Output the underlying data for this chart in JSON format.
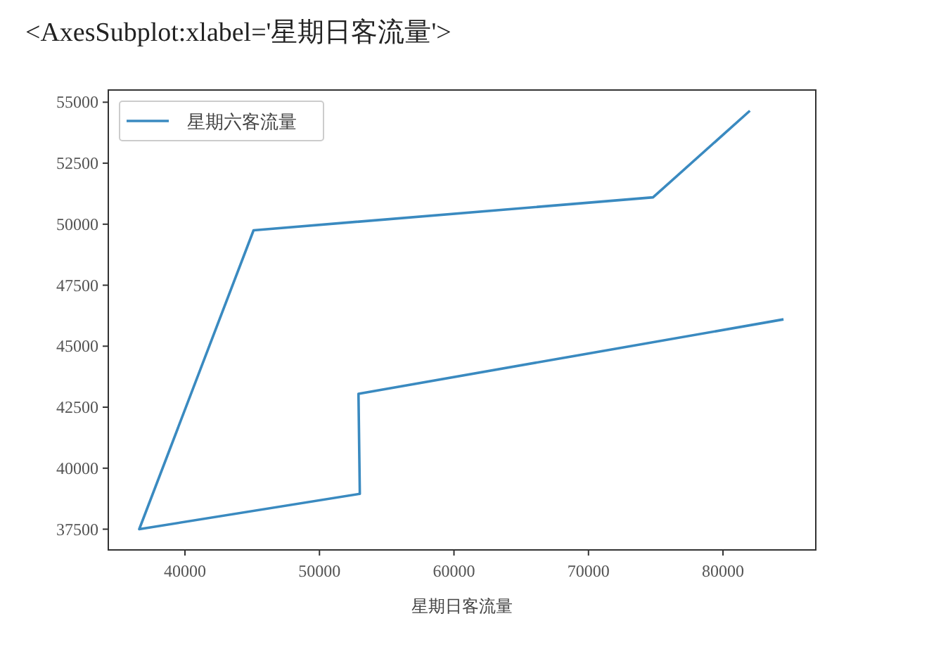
{
  "chart_data": {
    "type": "line",
    "xlabel": "星期日客流量",
    "annotations": [
      "<AxesSubplot:xlabel='星期日客流量'>"
    ],
    "x": [
      82000,
      74800,
      45100,
      36600,
      53000,
      52900,
      84500
    ],
    "series": [
      {
        "name": "星期六客流量",
        "color": "#3a8ac0",
        "values": [
          54650,
          51100,
          49750,
          37500,
          38950,
          43050,
          46100
        ]
      }
    ],
    "xlim": [
      34300,
      86900
    ],
    "ylim": [
      36650,
      55500
    ],
    "xticks": [
      40000,
      50000,
      60000,
      70000,
      80000
    ],
    "yticks": [
      37500,
      40000,
      42500,
      45000,
      47500,
      50000,
      52500,
      55000
    ],
    "legend": "top left",
    "grid": false
  }
}
